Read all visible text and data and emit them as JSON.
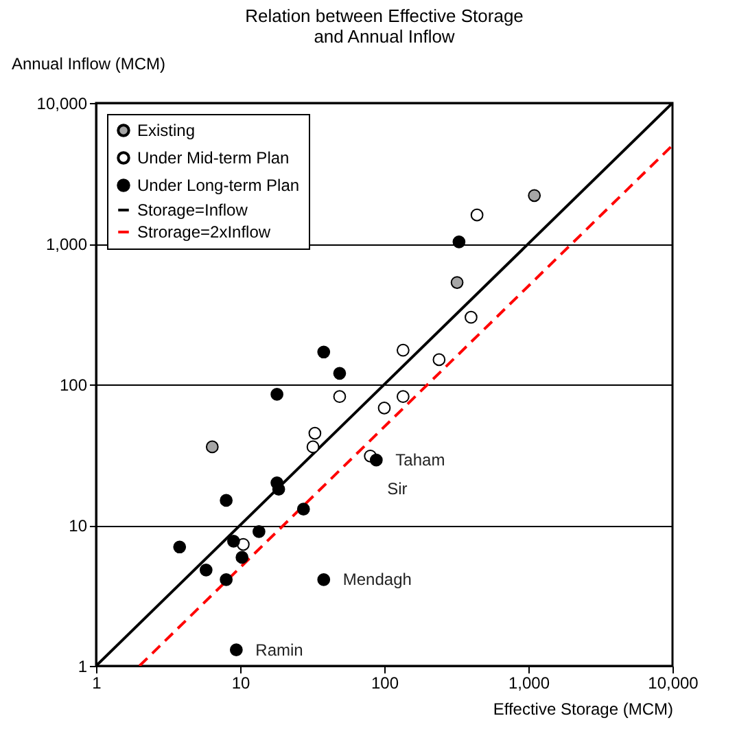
{
  "chart_data": {
    "type": "scatter",
    "title": "Relation between Effective Storage\nand Annual Inflow",
    "xlabel": "Effective Storage (MCM)",
    "ylabel": "Annual Inflow (MCM)",
    "log": "xy",
    "grid": "y",
    "legend": "top left",
    "marker": "circle",
    "xlim": [
      1,
      10000
    ],
    "ylim": [
      1,
      10000
    ],
    "xticks": [
      1,
      10,
      100,
      {
        "value": 1000,
        "label": "1,000"
      },
      {
        "value": 10000,
        "label": "10,000"
      }
    ],
    "yticks": [
      1,
      10,
      100,
      {
        "value": 1000,
        "label": "1,000"
      },
      {
        "value": 10000,
        "label": "10,000"
      }
    ],
    "series": [
      {
        "name": "Existing",
        "color": "#a6a6a6",
        "x": [
          1100,
          320,
          6.4
        ],
        "values": [
          2200,
          530,
          36
        ]
      },
      {
        "name": "Under Mid-term Plan",
        "color": "#ffffff",
        "x": [
          440,
          400,
          135,
          240,
          135,
          100,
          80,
          49,
          33,
          32,
          10.5
        ],
        "values": [
          1600,
          300,
          175,
          150,
          82,
          68,
          31,
          82,
          45,
          36,
          7.3
        ]
      },
      {
        "name": "Under Long-term Plan",
        "color": "#000000",
        "x": [
          38,
          49,
          18,
          330,
          88,
          18,
          18.5,
          8,
          27.5,
          13.5,
          3.8,
          9,
          10.3,
          5.8,
          8,
          38,
          9.4
        ],
        "values": [
          170,
          120,
          85,
          1030,
          29,
          20,
          18,
          15,
          13,
          9,
          7,
          7.7,
          5.9,
          4.8,
          4.1,
          4.1,
          1.3
        ]
      },
      {
        "name": "Storage=Inflow",
        "type": "line",
        "color": "#000000",
        "line_style": "solid",
        "marker": "none",
        "x": [
          1,
          10000
        ],
        "values": [
          1,
          10000
        ]
      },
      {
        "name": "Strorage=2xInflow",
        "type": "line",
        "color": "#ff0000",
        "line_style": "dashed",
        "marker": "none",
        "x": [
          2,
          10000
        ],
        "values": [
          1,
          5000
        ]
      }
    ],
    "annotations": [
      {
        "text": "Taham",
        "x": 88,
        "y": 29
      },
      "Sir",
      {
        "text": "Mendagh",
        "x": 38,
        "y": 4.1
      },
      {
        "text": "Ramin",
        "x": 9.4,
        "y": 1.3
      }
    ]
  }
}
